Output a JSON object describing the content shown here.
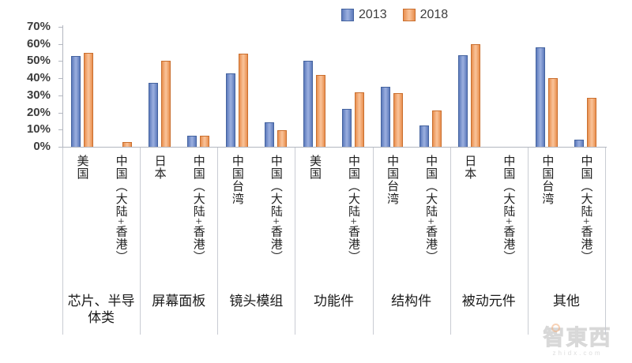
{
  "chart_data": {
    "type": "bar",
    "title": "",
    "xlabel": "",
    "ylabel": "",
    "ylim": [
      0,
      70
    ],
    "ytick_step": 10,
    "ytick_labels": [
      "0%",
      "10%",
      "20%",
      "30%",
      "40%",
      "50%",
      "60%",
      "70%"
    ],
    "grid": false,
    "legend_position": "top",
    "series": [
      {
        "name": "2013",
        "fill": "#5d7abc",
        "fill_light": "#97acdd",
        "edge": "#44639f"
      },
      {
        "name": "2018",
        "fill": "#e98f4e",
        "fill_light": "#f8c095",
        "edge": "#c96f2f"
      }
    ],
    "groups": [
      {
        "label": "芯片、半导体类",
        "regions": [
          {
            "label": "美国",
            "values": [
              53,
              55
            ]
          },
          {
            "label": "中国（大陆+香港）",
            "values": [
              0,
              3
            ]
          }
        ]
      },
      {
        "label": "屏幕面板",
        "regions": [
          {
            "label": "日本",
            "values": [
              37.5,
              50
            ]
          },
          {
            "label": "中国（大陆+香港）",
            "values": [
              6.5,
              6.5
            ]
          }
        ]
      },
      {
        "label": "镜头模组",
        "regions": [
          {
            "label": "中国台湾",
            "values": [
              43,
              54.5
            ]
          },
          {
            "label": "中国（大陆+香港）",
            "values": [
              14.5,
              9.5
            ]
          }
        ]
      },
      {
        "label": "功能件",
        "regions": [
          {
            "label": "美国",
            "values": [
              50,
              42
            ]
          },
          {
            "label": "中国（大陆+香港）",
            "values": [
              22,
              32
            ]
          }
        ]
      },
      {
        "label": "结构件",
        "regions": [
          {
            "label": "中国台湾",
            "values": [
              35,
              31.5
            ]
          },
          {
            "label": "中国（大陆+香港）",
            "values": [
              12.5,
              21
            ]
          }
        ]
      },
      {
        "label": "被动元件",
        "regions": [
          {
            "label": "日本",
            "values": [
              53.5,
              60
            ]
          },
          {
            "label": "中国（大陆+香港）",
            "values": [
              0,
              0
            ]
          }
        ]
      },
      {
        "label": "其他",
        "regions": [
          {
            "label": "中国台湾",
            "values": [
              58,
              40
            ]
          },
          {
            "label": "中国（大陆+香港）",
            "values": [
              4,
              28.5
            ]
          }
        ]
      }
    ]
  },
  "watermark": {
    "text": "智東西",
    "subtext": "zhidx.com"
  }
}
